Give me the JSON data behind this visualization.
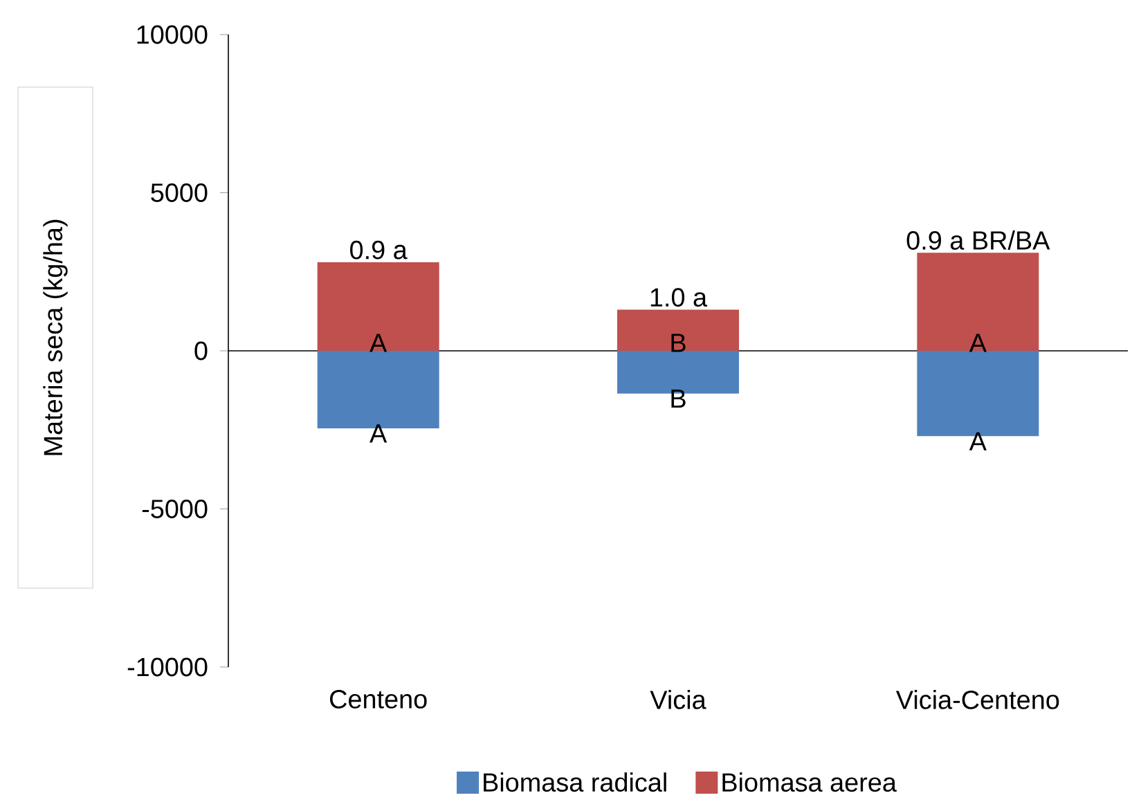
{
  "chart_data": {
    "type": "bar",
    "stacked": true,
    "categories": [
      "Centeno",
      "Vicia",
      "Vicia-Centeno"
    ],
    "series": [
      {
        "name": "Biomasa radical",
        "color": "#4f81bd",
        "values": [
          -2450,
          -1350,
          -2700
        ],
        "value_labels": [
          "A",
          "B",
          "A"
        ]
      },
      {
        "name": "Biomasa aerea",
        "color": "#c0504d",
        "values": [
          2800,
          1300,
          3100
        ],
        "value_labels": [
          "A",
          "B",
          "A"
        ]
      }
    ],
    "annotations": [
      "0.9 a",
      "1.0 a",
      "0.9 a BR/BA"
    ],
    "ylabel": "Materia seca (kg/ha)",
    "ylim": [
      -10000,
      10000
    ],
    "yticks": [
      -10000,
      -5000,
      0,
      5000,
      10000
    ],
    "legend": "bottom"
  }
}
